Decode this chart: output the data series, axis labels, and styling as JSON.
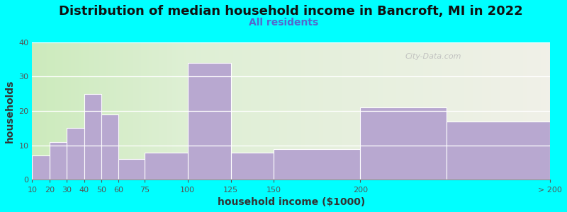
{
  "title": "Distribution of median household income in Bancroft, MI in 2022",
  "subtitle": "All residents",
  "xlabel": "household income ($1000)",
  "ylabel": "households",
  "background_color": "#00FFFF",
  "plot_bg_left": "#cceabc",
  "plot_bg_right": "#f0f0e8",
  "bar_color": "#b8a8d0",
  "watermark": "City-Data.com",
  "title_fontsize": 13,
  "subtitle_fontsize": 10,
  "axis_label_fontsize": 10,
  "bin_edges": [
    10,
    20,
    30,
    40,
    50,
    60,
    75,
    100,
    125,
    150,
    200,
    250,
    310
  ],
  "tick_positions": [
    10,
    20,
    30,
    40,
    50,
    60,
    75,
    100,
    125,
    150,
    200,
    310
  ],
  "tick_labels": [
    "10",
    "20",
    "30",
    "40",
    "50",
    "60",
    "75",
    "100",
    "125",
    "150",
    "200",
    "> 200"
  ],
  "values": [
    7,
    11,
    15,
    25,
    19,
    6,
    8,
    34,
    8,
    9,
    21,
    17
  ],
  "ylim": [
    0,
    40
  ],
  "yticks": [
    0,
    10,
    20,
    30,
    40
  ],
  "green_boundary": 100
}
